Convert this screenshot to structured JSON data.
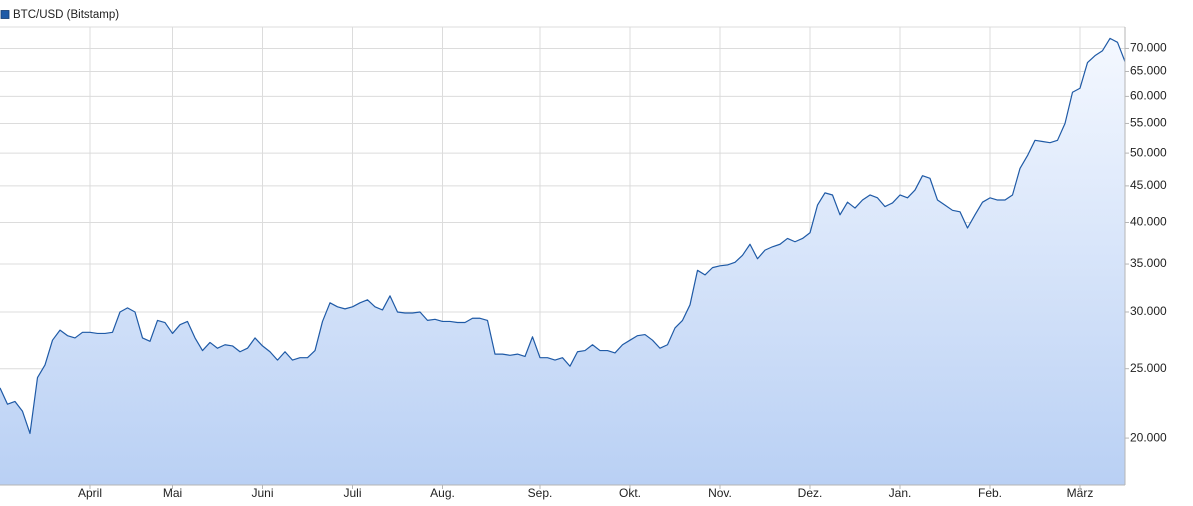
{
  "chart_data": {
    "type": "line",
    "categories": [
      null,
      null,
      null,
      null,
      null,
      null,
      null,
      null,
      null,
      null,
      null,
      null,
      "April",
      null,
      null,
      null,
      null,
      null,
      null,
      null,
      null,
      null,
      null,
      "Mai",
      null,
      null,
      null,
      null,
      null,
      null,
      null,
      null,
      null,
      null,
      null,
      "Juni",
      null,
      null,
      null,
      null,
      null,
      null,
      null,
      null,
      null,
      null,
      null,
      "Juli",
      null,
      null,
      null,
      null,
      null,
      null,
      null,
      null,
      null,
      null,
      null,
      "Aug.",
      null,
      null,
      null,
      null,
      null,
      null,
      null,
      null,
      null,
      null,
      null,
      null,
      "Sep.",
      null,
      null,
      null,
      null,
      null,
      null,
      null,
      null,
      null,
      null,
      null,
      "Okt.",
      null,
      null,
      null,
      null,
      null,
      null,
      null,
      null,
      null,
      null,
      null,
      "Nov.",
      null,
      null,
      null,
      null,
      null,
      null,
      null,
      null,
      null,
      null,
      null,
      "Dez.",
      null,
      null,
      null,
      null,
      null,
      null,
      null,
      null,
      null,
      null,
      null,
      "Jan.",
      null,
      null,
      null,
      null,
      null,
      null,
      null,
      null,
      null,
      null,
      null,
      "Feb.",
      null,
      null,
      null,
      null,
      null,
      null,
      null,
      null,
      null,
      null,
      null,
      "März",
      null,
      null,
      null,
      null,
      null,
      null
    ],
    "series": [
      {
        "name": "BTC/USD (Bitstamp)",
        "color": "#1f5aa6",
        "values": [
          23500,
          22300,
          22500,
          21800,
          20300,
          24300,
          25300,
          27400,
          28300,
          27800,
          27600,
          28100,
          28100,
          28000,
          28000,
          28100,
          30000,
          30400,
          30000,
          27600,
          27300,
          29200,
          29000,
          28000,
          28800,
          29100,
          27600,
          26500,
          27200,
          26700,
          27000,
          26900,
          26400,
          26700,
          27600,
          26900,
          26400,
          25700,
          26400,
          25700,
          25900,
          25900,
          26500,
          29100,
          30900,
          30500,
          30300,
          30500,
          30900,
          31200,
          30500,
          30200,
          31600,
          30000,
          29900,
          29900,
          30000,
          29200,
          29300,
          29100,
          29100,
          29000,
          29000,
          29400,
          29400,
          29200,
          26200,
          26200,
          26100,
          26200,
          26000,
          27700,
          25900,
          25900,
          25700,
          25900,
          25200,
          26400,
          26500,
          27000,
          26500,
          26500,
          26300,
          27000,
          27400,
          27800,
          27900,
          27400,
          26700,
          27000,
          28500,
          29200,
          30700,
          34300,
          33800,
          34600,
          34800,
          34900,
          35200,
          36000,
          37300,
          35600,
          36600,
          37000,
          37300,
          38000,
          37600,
          38000,
          38700,
          42300,
          44000,
          43700,
          41000,
          42700,
          41900,
          43000,
          43700,
          43300,
          42100,
          42600,
          43700,
          43300,
          44400,
          46500,
          46100,
          43000,
          42300,
          41600,
          41400,
          39300,
          41000,
          42700,
          43300,
          43000,
          43000,
          43700,
          47600,
          49600,
          52100,
          51900,
          51700,
          52100,
          55000,
          60800,
          61600,
          66900,
          68400,
          69500,
          72300,
          71400,
          67100
        ]
      }
    ],
    "ylim": [
      17200,
      75000
    ],
    "yticks": [
      {
        "value": 20000,
        "label": "20.000"
      },
      {
        "value": 25000,
        "label": "25.000"
      },
      {
        "value": 30000,
        "label": "30.000"
      },
      {
        "value": 35000,
        "label": "35.000"
      },
      {
        "value": 40000,
        "label": "40.000"
      },
      {
        "value": 45000,
        "label": "45.000"
      },
      {
        "value": 50000,
        "label": "50.000"
      },
      {
        "value": 55000,
        "label": "55.000"
      },
      {
        "value": 60000,
        "label": "60.000"
      },
      {
        "value": 65000,
        "label": "65.000"
      },
      {
        "value": 70000,
        "label": "70.000"
      }
    ],
    "log_scale": true,
    "grid": true,
    "legend": "top-left",
    "area_fill": true
  }
}
